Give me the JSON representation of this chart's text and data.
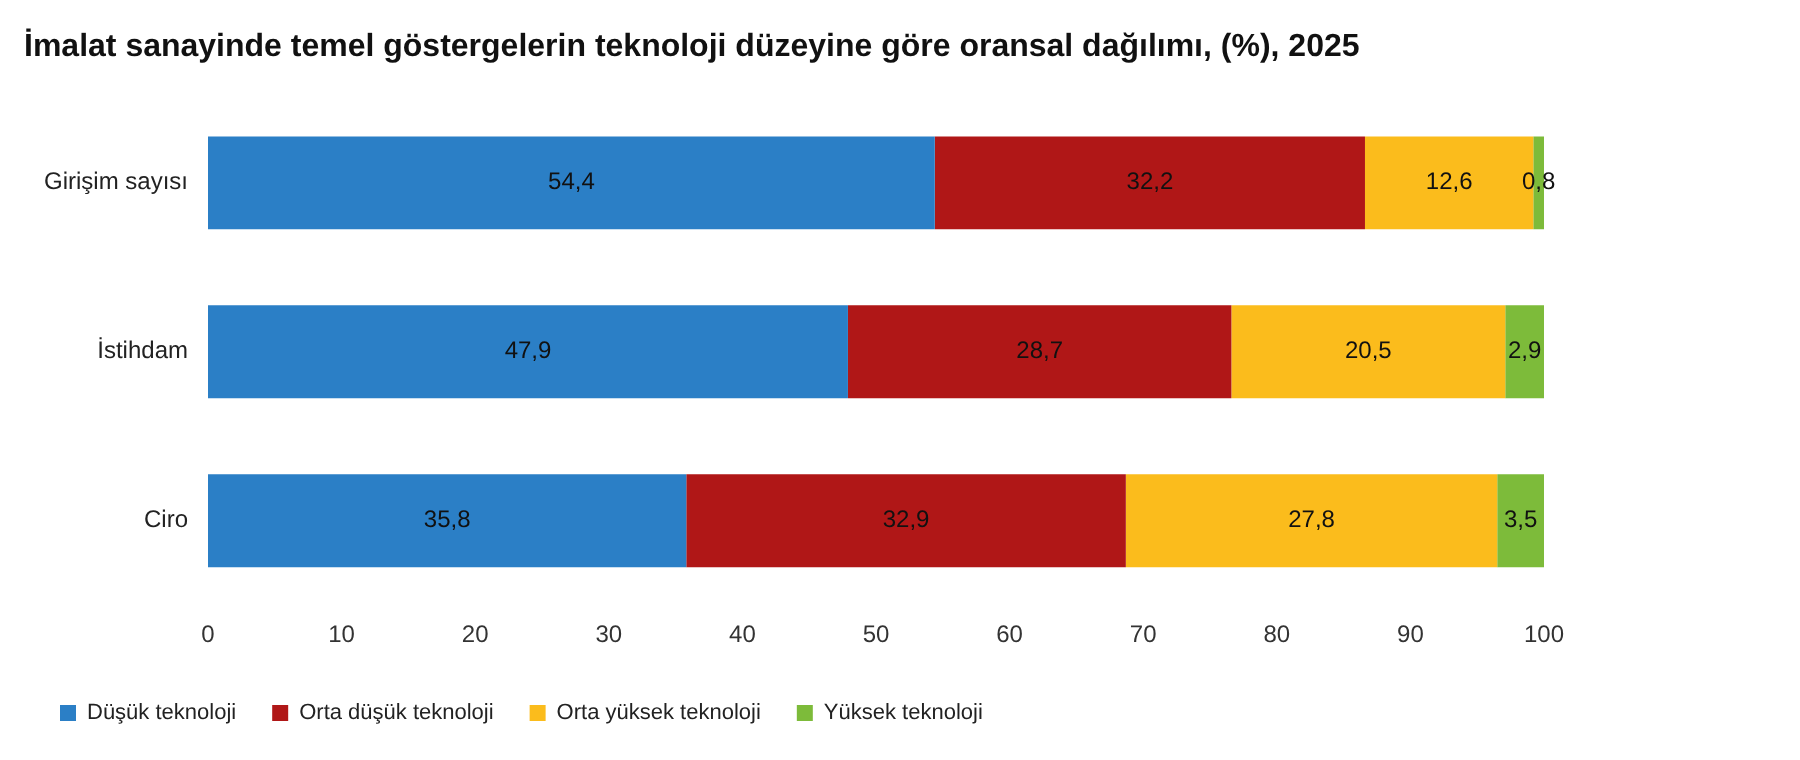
{
  "chart_data": {
    "type": "bar",
    "orientation": "horizontal",
    "stacked": true,
    "title": "İmalat sanayinde temel göstergelerin teknoloji düzeyine göre oransal dağılımı, (%), 2025",
    "categories": [
      "Girişim sayısı",
      "İstihdam",
      "Ciro"
    ],
    "series": [
      {
        "name": "Düşük teknoloji",
        "color": "#2b7fc6",
        "values": [
          54.4,
          47.9,
          35.8
        ],
        "value_labels": [
          "54,4",
          "47,9",
          "35,8"
        ]
      },
      {
        "name": "Orta düşük teknoloji",
        "color": "#b01717",
        "values": [
          32.2,
          28.7,
          32.9
        ],
        "value_labels": [
          "32,2",
          "28,7",
          "32,9"
        ]
      },
      {
        "name": "Orta yüksek teknoloji",
        "color": "#fbbc1c",
        "values": [
          12.6,
          20.5,
          27.8
        ],
        "value_labels": [
          "12,6",
          "20,5",
          "27,8"
        ]
      },
      {
        "name": "Yüksek teknoloji",
        "color": "#7dbb3a",
        "values": [
          0.8,
          2.9,
          3.5
        ],
        "value_labels": [
          "0,8",
          "2,9",
          "3,5"
        ]
      }
    ],
    "xlim": [
      0,
      100
    ],
    "xticks": [
      0,
      10,
      20,
      30,
      40,
      50,
      60,
      70,
      80,
      90,
      100
    ],
    "grid": false,
    "legend": "bottom"
  }
}
